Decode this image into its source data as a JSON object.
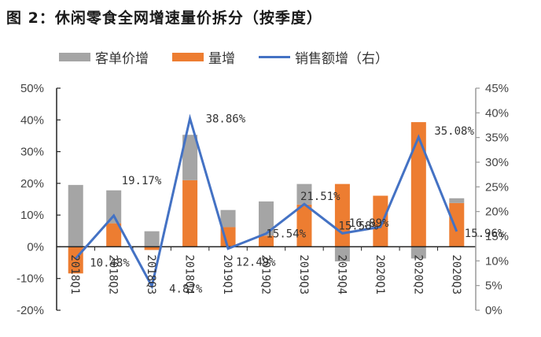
{
  "title": "图 2：休闲零食全网增速量价拆分（按季度）",
  "legend": [
    {
      "label": "客单价增",
      "type": "bar",
      "color": "#a5a5a5"
    },
    {
      "label": "量增",
      "type": "bar",
      "color": "#ed7d31"
    },
    {
      "label": "销售额增（右）",
      "type": "line",
      "color": "#4472c4"
    }
  ],
  "chart_data": {
    "type": "bar",
    "title": "图 2：休闲零食全网增速量价拆分（按季度）",
    "categories": [
      "2018Q1",
      "2018Q2",
      "2018Q3",
      "2018Q4",
      "2019Q1",
      "2019Q2",
      "2019Q3",
      "2019Q4",
      "2020Q1",
      "2020Q2",
      "2020Q3"
    ],
    "series": [
      {
        "name": "客单价增",
        "type": "stacked-bar",
        "axis": "left",
        "color": "#a5a5a5",
        "values": [
          19.5,
          10.4,
          4.9,
          14.3,
          5.4,
          10.8,
          6.5,
          -4.6,
          0.0,
          -3.7,
          1.5
        ]
      },
      {
        "name": "量增",
        "type": "stacked-bar",
        "axis": "left",
        "color": "#ed7d31",
        "values": [
          -8.4,
          7.4,
          -1.0,
          21.0,
          6.2,
          3.5,
          13.3,
          19.8,
          16.1,
          39.3,
          13.8
        ]
      },
      {
        "name": "销售额增（右）",
        "type": "line",
        "axis": "right",
        "color": "#4472c4",
        "values": [
          10.48,
          19.17,
          4.87,
          38.86,
          12.49,
          15.54,
          21.51,
          15.58,
          16.89,
          35.08,
          15.96
        ],
        "labels": [
          "10.48%",
          "19.17%",
          "4.87%",
          "38.86%",
          "12.49%",
          "15.54%",
          "21.51%",
          "15.58%",
          "16.89%",
          "35.08%",
          "15.96%"
        ]
      }
    ],
    "left_axis": {
      "min": -20,
      "max": 50,
      "step": 10,
      "ticks": [
        "50%",
        "40%",
        "30%",
        "20%",
        "10%",
        "0%",
        "-10%",
        "-20%"
      ]
    },
    "right_axis": {
      "min": 0,
      "max": 45,
      "step": 5,
      "ticks": [
        "45%",
        "40%",
        "35%",
        "30%",
        "25%",
        "20%",
        "15%",
        "10%",
        "5%",
        "0%"
      ]
    },
    "xlabel": "",
    "ylabel": "",
    "grid": false,
    "legend_position": "top"
  }
}
